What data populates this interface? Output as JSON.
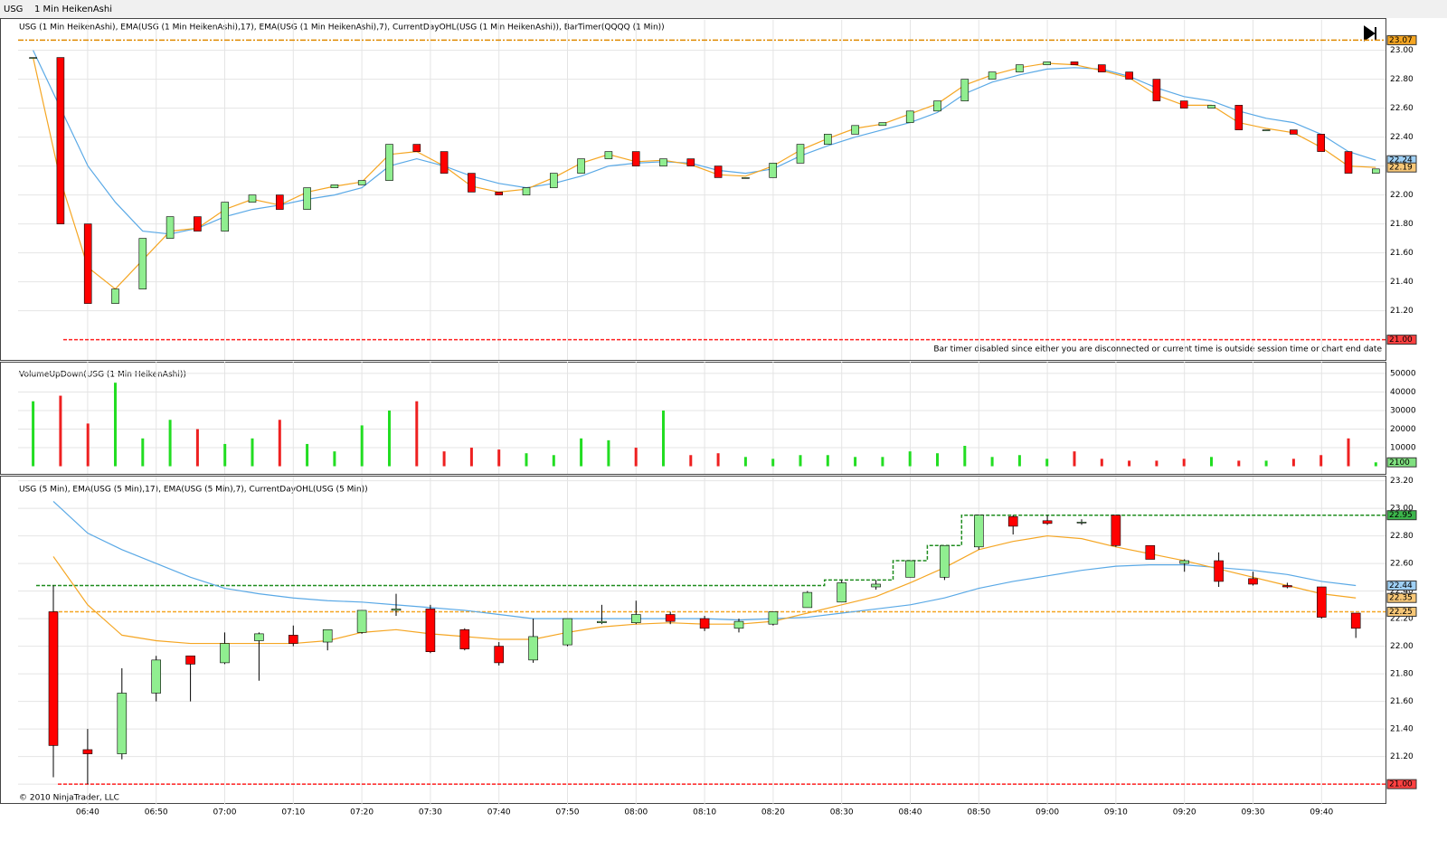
{
  "toolbar": {
    "instrument": "USG",
    "period": "1 Min HeikenAshi"
  },
  "footer": {
    "copyright": "© 2010 NinjaTrader, LLC"
  },
  "chart_data": [
    {
      "type": "candlestick",
      "title": "USG (1 Min HeikenAshi), EMA(USG (1 Min HeikenAshi),17), EMA(USG (1 Min HeikenAshi),7), CurrentDayOHL(USG (1 Min HeikenAshi)), BarTimer(QQQQ (1 Min))",
      "annotation": "Bar timer disabled since either you are disconnected or current time is outside session time or chart end date",
      "close": [
        22.95,
        21.8,
        21.25,
        21.35,
        21.7,
        21.85,
        21.75,
        21.95,
        22.0,
        21.9,
        22.05,
        22.07,
        22.1,
        22.35,
        22.3,
        22.15,
        22.02,
        22.0,
        22.05,
        22.15,
        22.25,
        22.3,
        22.2,
        22.25,
        22.2,
        22.12,
        22.12,
        22.22,
        22.35,
        22.42,
        22.48,
        22.5,
        22.58,
        22.65,
        22.8,
        22.85,
        22.9,
        22.92,
        22.9,
        22.85,
        22.8,
        22.65,
        22.6,
        22.62,
        22.45,
        22.45,
        22.42,
        22.3,
        22.15,
        22.18
      ],
      "up_color": "#90ee90",
      "down_color": "#ff0000",
      "series": [
        {
          "color": "#5aa9e6",
          "values": [
            23.0,
            22.6,
            22.2,
            21.95,
            21.75,
            21.73,
            21.77,
            21.85,
            21.9,
            21.93,
            21.97,
            22.0,
            22.05,
            22.2,
            22.25,
            22.2,
            22.13,
            22.08,
            22.05,
            22.08,
            22.13,
            22.2,
            22.22,
            22.23,
            22.22,
            22.17,
            22.15,
            22.18,
            22.27,
            22.34,
            22.4,
            22.45,
            22.5,
            22.57,
            22.7,
            22.78,
            22.83,
            22.87,
            22.88,
            22.87,
            22.82,
            22.74,
            22.68,
            22.65,
            22.58,
            22.53,
            22.5,
            22.42,
            22.3,
            22.24
          ]
        },
        {
          "color": "#f5a623",
          "values": [
            22.95,
            22.1,
            21.5,
            21.35,
            21.55,
            21.75,
            21.77,
            21.9,
            21.97,
            21.93,
            22.02,
            22.06,
            22.09,
            22.28,
            22.3,
            22.2,
            22.06,
            22.02,
            22.04,
            22.12,
            22.22,
            22.28,
            22.23,
            22.24,
            22.21,
            22.14,
            22.13,
            22.2,
            22.31,
            22.39,
            22.46,
            22.49,
            22.56,
            22.63,
            22.76,
            22.83,
            22.88,
            22.91,
            22.9,
            22.86,
            22.81,
            22.69,
            22.62,
            22.62,
            22.5,
            22.46,
            22.43,
            22.33,
            22.2,
            22.19
          ]
        }
      ],
      "high": {
        "value": 23.07,
        "label": "23.07"
      },
      "low": {
        "value": 21.0,
        "label": "21.00"
      },
      "ylim": [
        20.86,
        23.21
      ],
      "yticks": [
        {
          "value": 21.2,
          "label": "21.20"
        },
        {
          "value": 21.4,
          "label": "21.40"
        },
        {
          "value": 21.6,
          "label": "21.60"
        },
        {
          "value": 21.8,
          "label": "21.80"
        },
        {
          "value": 22.0,
          "label": "22.00"
        },
        {
          "value": 22.2,
          "label": "22.20"
        },
        {
          "value": 22.4,
          "label": "22.40"
        },
        {
          "value": 22.6,
          "label": "22.60"
        },
        {
          "value": 22.8,
          "label": "22.80"
        },
        {
          "value": 23.0,
          "label": "23.00"
        }
      ],
      "grid": true
    },
    {
      "type": "bar",
      "title": "VolumeUpDown(USG (1 Min HeikenAshi))",
      "values": [
        35000,
        38000,
        23000,
        45000,
        15000,
        25000,
        20000,
        12000,
        15000,
        25000,
        12000,
        8000,
        22000,
        30000,
        35000,
        8000,
        10000,
        9000,
        7000,
        6000,
        15000,
        14000,
        10000,
        30000,
        6000,
        7000,
        5000,
        4000,
        6000,
        6000,
        5000,
        5000,
        8000,
        7000,
        11000,
        5000,
        6000,
        4000,
        8000,
        4000,
        3000,
        3000,
        4000,
        5000,
        3000,
        3000,
        4000,
        6000,
        15000,
        2100
      ],
      "ylim": [
        -4100,
        56300
      ],
      "yticks": [
        10000,
        20000,
        30000,
        40000,
        50000
      ],
      "grid": true
    },
    {
      "type": "candlestick",
      "title": "USG (5 Min), EMA(USG (5 Min),17), EMA(USG (5 Min),7), CurrentDayOHL(USG (5 Min))",
      "categories": [
        null,
        "06:40",
        null,
        "06:50",
        null,
        "07:00",
        null,
        "07:10",
        null,
        "07:20",
        null,
        "07:30",
        null,
        "07:40",
        null,
        "07:50",
        null,
        "08:00",
        null,
        "08:10",
        null,
        "08:20",
        null,
        "08:30",
        null,
        "08:40",
        null,
        "08:50",
        null,
        "09:00",
        null,
        "09:10",
        null,
        "09:20",
        null,
        "09:30",
        null,
        "09:40",
        null
      ],
      "open": [
        22.25,
        21.25,
        21.22,
        21.66,
        21.93,
        21.88,
        22.04,
        22.08,
        22.03,
        22.1,
        22.26,
        22.27,
        22.12,
        22.0,
        21.9,
        22.01,
        22.17,
        22.17,
        22.23,
        22.2,
        22.13,
        22.16,
        22.28,
        22.32,
        22.43,
        22.5,
        22.5,
        22.72,
        22.94,
        22.91,
        22.9,
        22.95,
        22.73,
        22.6,
        22.62,
        22.49,
        22.44,
        22.43,
        22.24
      ],
      "high": [
        22.44,
        21.4,
        21.84,
        21.93,
        21.93,
        22.1,
        22.1,
        22.15,
        22.12,
        22.26,
        22.38,
        22.3,
        22.13,
        22.03,
        22.2,
        22.2,
        22.3,
        22.33,
        22.25,
        22.22,
        22.2,
        22.25,
        22.4,
        22.48,
        22.48,
        22.62,
        22.73,
        22.95,
        22.95,
        22.95,
        22.92,
        22.95,
        22.73,
        22.63,
        22.68,
        22.54,
        22.46,
        22.43,
        22.24
      ],
      "low": [
        21.05,
        21.0,
        21.18,
        21.6,
        21.6,
        21.87,
        21.75,
        22.0,
        21.97,
        22.09,
        22.22,
        21.95,
        21.97,
        21.86,
        21.88,
        22.0,
        22.16,
        22.16,
        22.16,
        22.11,
        22.1,
        22.15,
        22.28,
        22.32,
        22.41,
        22.5,
        22.48,
        22.7,
        22.81,
        22.88,
        22.88,
        22.72,
        22.63,
        22.54,
        22.43,
        22.44,
        22.42,
        22.2,
        22.06
      ],
      "close": [
        21.28,
        21.22,
        21.66,
        21.9,
        21.87,
        22.02,
        22.09,
        22.02,
        22.12,
        22.26,
        22.27,
        21.96,
        21.98,
        21.88,
        22.07,
        22.2,
        22.18,
        22.23,
        22.18,
        22.13,
        22.18,
        22.25,
        22.39,
        22.46,
        22.45,
        22.62,
        22.73,
        22.95,
        22.87,
        22.89,
        22.9,
        22.73,
        22.63,
        22.62,
        22.47,
        22.45,
        22.43,
        22.21,
        22.13
      ],
      "up_color": "#90ee90",
      "down_color": "#ff0000",
      "high_color": "#1e8c1e",
      "series": [
        {
          "color": "#5aa9e6",
          "values": [
            23.05,
            22.82,
            22.7,
            22.6,
            22.5,
            22.42,
            22.38,
            22.35,
            22.33,
            22.32,
            22.3,
            22.28,
            22.26,
            22.23,
            22.2,
            22.2,
            22.2,
            22.2,
            22.2,
            22.2,
            22.19,
            22.2,
            22.21,
            22.24,
            22.27,
            22.3,
            22.35,
            22.42,
            22.47,
            22.51,
            22.55,
            22.58,
            22.59,
            22.59,
            22.57,
            22.55,
            22.52,
            22.47,
            22.44
          ]
        },
        {
          "color": "#f5a623",
          "values": [
            22.65,
            22.3,
            22.08,
            22.04,
            22.02,
            22.02,
            22.02,
            22.02,
            22.04,
            22.1,
            22.12,
            22.09,
            22.07,
            22.05,
            22.05,
            22.1,
            22.14,
            22.16,
            22.17,
            22.16,
            22.16,
            22.18,
            22.24,
            22.3,
            22.36,
            22.46,
            22.57,
            22.7,
            22.76,
            22.8,
            22.78,
            22.72,
            22.67,
            22.62,
            22.56,
            22.5,
            22.44,
            22.38,
            22.35
          ]
        }
      ],
      "open_line": 22.25,
      "low_line": {
        "value": 21.0,
        "label": "21.00"
      },
      "ylim": [
        20.85,
        23.23
      ],
      "yticks": [
        {
          "value": 21.0,
          "label": "21.00"
        },
        {
          "value": 21.2,
          "label": "21.20"
        },
        {
          "value": 21.4,
          "label": "21.40"
        },
        {
          "value": 21.6,
          "label": "21.60"
        },
        {
          "value": 21.8,
          "label": "21.80"
        },
        {
          "value": 22.0,
          "label": "22.00"
        },
        {
          "value": 22.2,
          "label": "22.20"
        },
        {
          "value": 22.4,
          "label": "22.40"
        },
        {
          "value": 22.6,
          "label": "22.60"
        },
        {
          "value": 22.8,
          "label": "22.80"
        },
        {
          "value": 23.0,
          "label": "23.00"
        },
        {
          "value": 23.2,
          "label": "23.20"
        }
      ],
      "grid": true
    }
  ]
}
